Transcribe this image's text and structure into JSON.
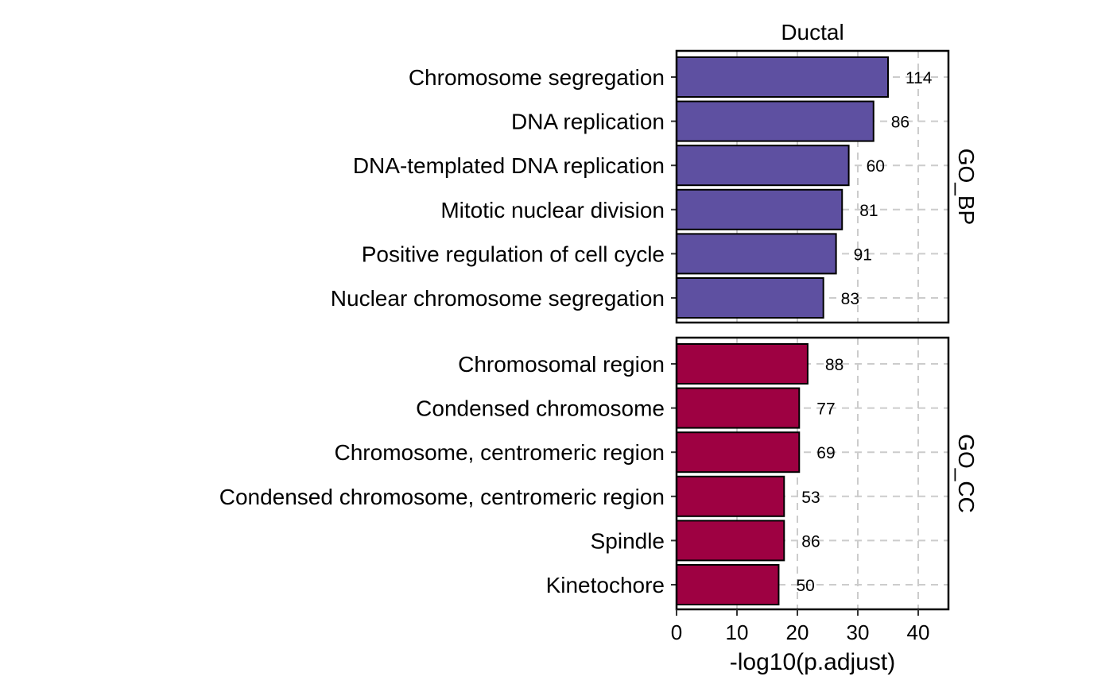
{
  "chart_data": {
    "type": "bar",
    "orientation": "horizontal",
    "title": "Ductal",
    "xlabel": "-log10(p.adjust)",
    "ylabel": "",
    "xlim": [
      0,
      45
    ],
    "x_ticks": [
      "0",
      "10",
      "20",
      "30",
      "40"
    ],
    "grid": "dashed vertical and horizontal gridlines",
    "legend": "none",
    "panels": [
      {
        "name": "GO_BP",
        "color": "#5E50A1",
        "categories": [
          "Chromosome segregation",
          "DNA replication",
          "DNA-templated DNA replication",
          "Mitotic nuclear division",
          "Positive regulation of cell cycle",
          "Nuclear chromosome segregation"
        ],
        "values": [
          35.0,
          32.6,
          28.5,
          27.4,
          26.4,
          24.3
        ],
        "counts": [
          "114",
          "86",
          "60",
          "81",
          "91",
          "83"
        ]
      },
      {
        "name": "GO_CC",
        "color": "#9E0142",
        "categories": [
          "Chromosomal region",
          "Condensed chromosome",
          "Chromosome, centromeric region",
          "Condensed chromosome, centromeric region",
          "Spindle",
          "Kinetochore"
        ],
        "values": [
          21.7,
          20.3,
          20.3,
          17.8,
          17.8,
          16.9
        ],
        "counts": [
          "88",
          "77",
          "69",
          "53",
          "86",
          "50"
        ]
      }
    ]
  }
}
